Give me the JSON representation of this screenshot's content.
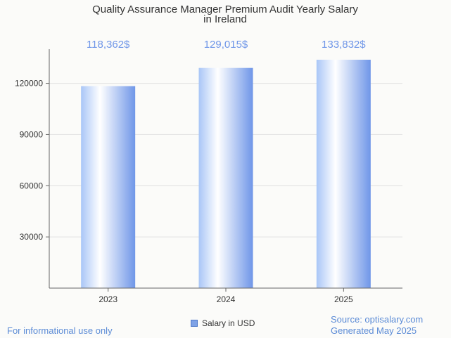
{
  "colors": {
    "accent": "#6f96e8",
    "footer_text": "#5b8bd6",
    "grid": "#e0e0e0",
    "axis": "#666666"
  },
  "chart_data": {
    "type": "bar",
    "title_lines": [
      "Quality Assurance Manager Premium Audit Yearly Salary",
      "in Ireland"
    ],
    "categories": [
      "2023",
      "2024",
      "2025"
    ],
    "series": [
      {
        "name": "Salary in USD",
        "values": [
          118362,
          129015,
          133832
        ],
        "data_labels": [
          "118,362$",
          "129,015$",
          "133,832$"
        ]
      }
    ],
    "y_ticks": [
      30000,
      60000,
      90000,
      120000
    ],
    "ylim": [
      0,
      140000
    ],
    "grid": true,
    "legend_position": "bottom-center"
  },
  "footer": {
    "left": "For informational use only",
    "source": "Source: optisalary.com",
    "generated": "Generated May 2025"
  }
}
